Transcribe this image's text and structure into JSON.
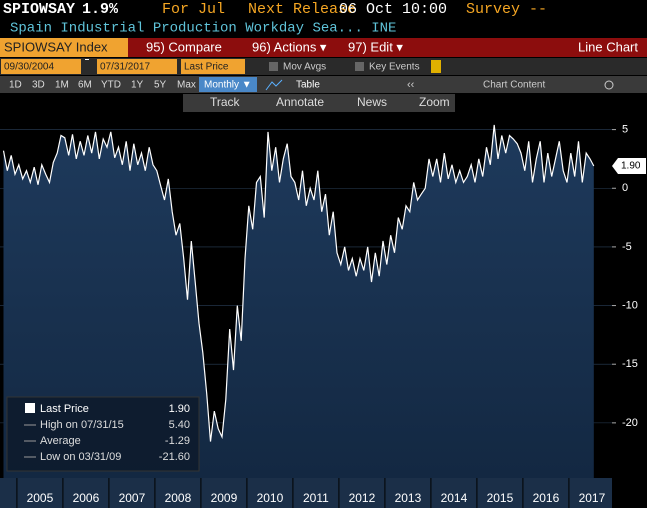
{
  "header": {
    "ticker": "SPIOWSAY",
    "value": "1.9%",
    "period": "For Jul",
    "release_label": "Next Release",
    "release_date": "06 Oct 10:00",
    "survey": "Survey --",
    "description": "Spain Industrial Production Workday Sea...  INE"
  },
  "toolbar": {
    "security": "SPIOWSAY Index",
    "menus": [
      "95) Compare",
      "96) Actions ▾",
      "97) Edit ▾"
    ],
    "chart_type": "Line Chart",
    "start_date": "09/30/2004",
    "end_date": "07/31/2017",
    "field": "Last Price",
    "frequency": "Monthly ▼",
    "table": "Table",
    "options": [
      "Mov Avgs",
      "Key Events"
    ],
    "ranges": [
      "1D",
      "3D",
      "1M",
      "6M",
      "YTD",
      "1Y",
      "5Y",
      "Max"
    ],
    "chart_content": "Chart Content",
    "tools": [
      "Track",
      "Annotate",
      "News",
      "Zoom"
    ]
  },
  "chart_data": {
    "type": "line",
    "categories": [
      null,
      null,
      null,
      null,
      null,
      null,
      null,
      null,
      null,
      "2005",
      null,
      null,
      null,
      null,
      null,
      null,
      null,
      null,
      null,
      null,
      null,
      "2006",
      null,
      null,
      null,
      null,
      null,
      null,
      null,
      null,
      null,
      null,
      null,
      "2007",
      null,
      null,
      null,
      null,
      null,
      null,
      null,
      null,
      null,
      null,
      null,
      "2008",
      null,
      null,
      null,
      null,
      null,
      null,
      null,
      null,
      null,
      null,
      null,
      "2009",
      null,
      null,
      null,
      null,
      null,
      null,
      null,
      null,
      null,
      null,
      null,
      "2010",
      null,
      null,
      null,
      null,
      null,
      null,
      null,
      null,
      null,
      null,
      null,
      "2011",
      null,
      null,
      null,
      null,
      null,
      null,
      null,
      null,
      null,
      null,
      null,
      "2012",
      null,
      null,
      null,
      null,
      null,
      null,
      null,
      null,
      null,
      null,
      null,
      "2013",
      null,
      null,
      null,
      null,
      null,
      null,
      null,
      null,
      null,
      null,
      null,
      "2014",
      null,
      null,
      null,
      null,
      null,
      null,
      null,
      null,
      null,
      null,
      null,
      "2015",
      null,
      null,
      null,
      null,
      null,
      null,
      null,
      null,
      null,
      null,
      null,
      "2016",
      null,
      null,
      null,
      null,
      null,
      null,
      null,
      null,
      null,
      null,
      null,
      "2017",
      null
    ],
    "series": [
      {
        "name": "Last Price",
        "color": "#ffffff",
        "values": [
          3.2,
          1.5,
          2.8,
          1.2,
          2.0,
          0.8,
          1.5,
          0.5,
          1.8,
          0.3,
          2.0,
          1.2,
          0.5,
          2.2,
          3.0,
          4.5,
          4.3,
          2.8,
          4.6,
          2.5,
          4.0,
          2.8,
          4.5,
          3.0,
          4.8,
          2.5,
          4.2,
          3.5,
          4.8,
          2.6,
          3.5,
          2.0,
          4.0,
          1.5,
          3.8,
          2.0,
          3.0,
          1.5,
          3.5,
          2.0,
          1.5,
          0.2,
          -1.0,
          0.8,
          -2.0,
          -4.0,
          -3.0,
          -6.0,
          -9.5,
          -4.5,
          -8.0,
          -11.5,
          -14.0,
          -17.5,
          -21.6,
          -19.0,
          -20.5,
          -21.2,
          -18.0,
          -12.0,
          -15.5,
          -10.0,
          -13.0,
          -6.0,
          -1.5,
          -3.5,
          0.5,
          1.0,
          -2.5,
          4.8,
          1.5,
          3.5,
          0.5,
          2.5,
          3.8,
          1.0,
          0.5,
          -1.0,
          1.5,
          -1.5,
          0.0,
          -1.0,
          1.5,
          -2.0,
          -0.5,
          -4.0,
          -2.0,
          -5.5,
          -6.5,
          -5.0,
          -7.0,
          -6.0,
          -7.5,
          -6.0,
          -7.0,
          -5.0,
          -8.0,
          -5.5,
          -7.5,
          -4.5,
          -6.5,
          -4.0,
          -5.5,
          -2.5,
          -3.5,
          -1.5,
          -2.0,
          0.5,
          -1.0,
          -0.5,
          0.0,
          2.5,
          1.0,
          2.5,
          0.5,
          3.0,
          0.8,
          2.0,
          0.5,
          1.5,
          0.5,
          1.0,
          2.0,
          0.5,
          2.5,
          1.0,
          3.5,
          2.0,
          5.4,
          2.5,
          4.5,
          3.0,
          4.5,
          4.2,
          3.8,
          3.0,
          1.5,
          4.0,
          0.5,
          2.5,
          4.0,
          0.5,
          3.0,
          1.0,
          2.5,
          4.0,
          1.5,
          0.5,
          3.0,
          1.0,
          4.0,
          0.5,
          3.0,
          2.5,
          1.9
        ]
      }
    ],
    "ylim": [
      -24.7,
      6.5
    ],
    "yticks": [
      5,
      0,
      -5,
      -10,
      -15,
      -20
    ],
    "last_value_label": "1.90",
    "stats": [
      {
        "label": "High on 07/31/15",
        "value": "5.40"
      },
      {
        "label": "Average",
        "value": "-1.29"
      },
      {
        "label": "Low on 03/31/09",
        "value": "-21.60"
      }
    ]
  }
}
